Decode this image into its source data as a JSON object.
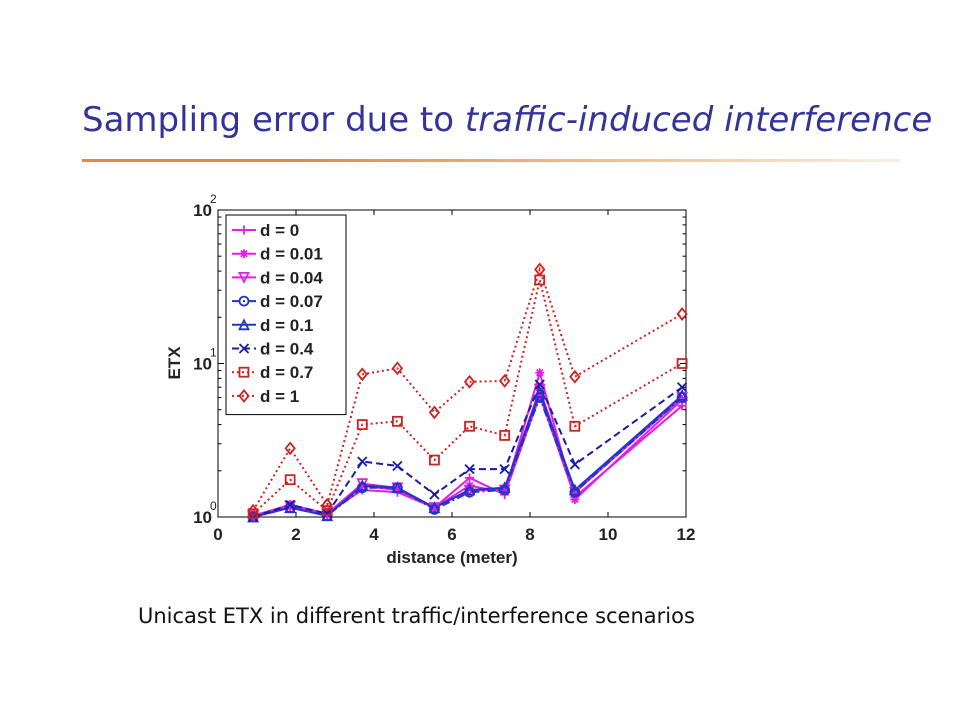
{
  "slide": {
    "title_main": "Sampling error due to ",
    "title_emph": "traffic-induced interference",
    "caption": "Unicast ETX in different traffic/interference scenarios",
    "title_color": "#333399",
    "rule_color": "#e08a3c"
  },
  "chart_data": {
    "type": "line",
    "xlabel": "distance (meter)",
    "ylabel": "ETX",
    "xlim": [
      0,
      12
    ],
    "ylim": [
      1,
      100
    ],
    "yscale": "log",
    "xticks": [
      "0",
      "2",
      "4",
      "6",
      "8",
      "10",
      "12"
    ],
    "yticks": [
      {
        "base": "10",
        "exp": "0"
      },
      {
        "base": "10",
        "exp": "1"
      },
      {
        "base": "10",
        "exp": "2"
      }
    ],
    "legend_position": "top-left",
    "x": [
      0.9,
      1.85,
      2.8,
      3.7,
      4.6,
      5.55,
      6.45,
      7.35,
      8.25,
      9.15,
      11.9
    ],
    "series": [
      {
        "name": "d = 0",
        "color": "#e020e0",
        "marker": "plus",
        "dash": "solid",
        "values": [
          1.0,
          1.2,
          1.05,
          1.5,
          1.45,
          1.15,
          1.8,
          1.4,
          6.2,
          1.35,
          5.3
        ]
      },
      {
        "name": "d = 0.01",
        "color": "#e020e0",
        "marker": "star",
        "dash": "solid",
        "values": [
          1.02,
          1.2,
          1.05,
          1.6,
          1.5,
          1.15,
          1.6,
          1.45,
          8.7,
          1.3,
          5.8
        ]
      },
      {
        "name": "d = 0.04",
        "color": "#e020e0",
        "marker": "triangle-down",
        "dash": "solid",
        "values": [
          1.02,
          1.18,
          1.05,
          1.65,
          1.55,
          1.15,
          1.5,
          1.5,
          6.8,
          1.45,
          6.0
        ]
      },
      {
        "name": "d = 0.07",
        "color": "#2233cc",
        "marker": "circle",
        "dash": "dashdot",
        "values": [
          1.0,
          1.15,
          1.02,
          1.55,
          1.55,
          1.12,
          1.45,
          1.5,
          6.0,
          1.45,
          6.0
        ]
      },
      {
        "name": "d = 0.1",
        "color": "#2233cc",
        "marker": "triangle-up",
        "dash": "solid",
        "values": [
          1.0,
          1.15,
          1.02,
          1.6,
          1.55,
          1.15,
          1.5,
          1.55,
          6.5,
          1.5,
          6.2
        ]
      },
      {
        "name": "d = 0.4",
        "color": "#1a1aaa",
        "marker": "x",
        "dash": "dashed",
        "values": [
          1.0,
          1.2,
          1.05,
          2.3,
          2.15,
          1.4,
          2.05,
          2.05,
          7.3,
          2.2,
          7.0
        ]
      },
      {
        "name": "d = 0.7",
        "color": "#cc2222",
        "marker": "square",
        "dash": "dotted",
        "values": [
          1.05,
          1.75,
          1.1,
          4.0,
          4.2,
          2.35,
          3.9,
          3.4,
          35.0,
          3.9,
          10.0
        ]
      },
      {
        "name": "d = 1",
        "color": "#cc2222",
        "marker": "diamond",
        "dash": "dotted",
        "values": [
          1.1,
          2.8,
          1.2,
          8.5,
          9.3,
          4.8,
          7.6,
          7.7,
          41.0,
          8.2,
          21.0
        ]
      }
    ]
  }
}
